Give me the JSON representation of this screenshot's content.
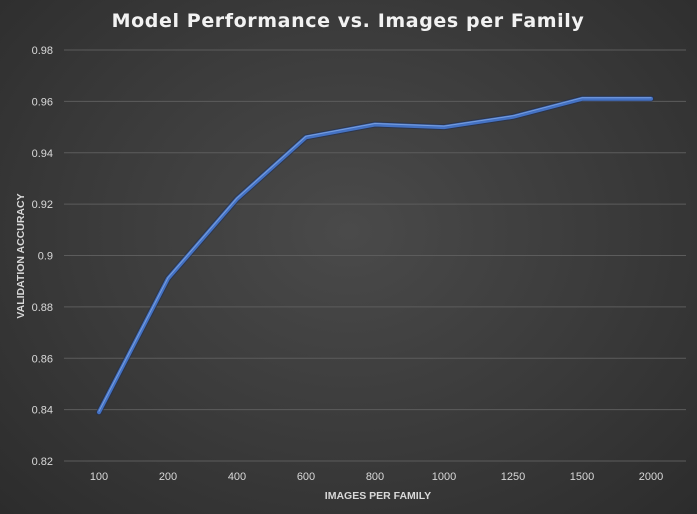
{
  "chart_data": {
    "type": "line",
    "title": "Model Performance vs. Images per Family",
    "xlabel": "IMAGES PER FAMILY",
    "ylabel": "VALIDATION ACCURACY",
    "categories": [
      "100",
      "200",
      "400",
      "600",
      "800",
      "1000",
      "1250",
      "1500",
      "2000"
    ],
    "series": [
      {
        "values": [
          0.839,
          0.891,
          0.922,
          0.946,
          0.951,
          0.95,
          0.954,
          0.961,
          0.961
        ]
      }
    ],
    "ylim": [
      0.82,
      0.98
    ],
    "yticks": [
      "0.82",
      "0.84",
      "0.86",
      "0.88",
      "0.9",
      "0.92",
      "0.94",
      "0.96",
      "0.98"
    ],
    "grid": true,
    "legend": "none",
    "colors": {
      "line": "#4472c4",
      "line_highlight": "#8fb0e8",
      "grid": "#5c5c5c",
      "text": "#d9d9d9"
    }
  }
}
